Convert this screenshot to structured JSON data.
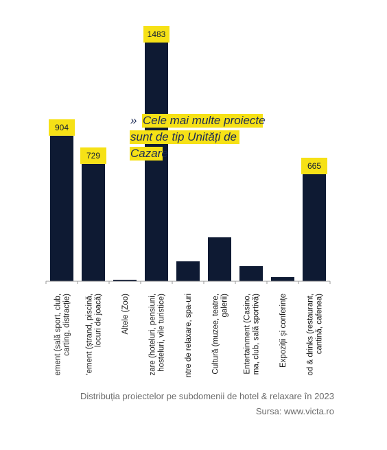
{
  "chart_data": {
    "type": "bar",
    "categories": [
      [
        "ement (sală sport, club,",
        "carting, distracție)"
      ],
      [
        "'ement (ștrand, piscină,",
        "locuri de joacă)"
      ],
      [
        "Altele (Zoo)"
      ],
      [
        "zare (hoteluri, pensiuni,",
        "hosteluri, vile turistice)"
      ],
      [
        "ntre de relaxare, spa-uri"
      ],
      [
        "Cultură (muzee, teatre,",
        "galerii)"
      ],
      [
        "Entertainment (Casino,",
        "ma, club, sală sportivă)"
      ],
      [
        "Expoziții și conferințe"
      ],
      [
        "od & drinks (restaurant,",
        "cantină, cafenea)"
      ]
    ],
    "values": [
      904,
      729,
      9,
      1483,
      124,
      273,
      94,
      26,
      665
    ],
    "value_labels": [
      "904",
      "729",
      null,
      "1483",
      null,
      null,
      null,
      null,
      "665"
    ],
    "color": "#0e1a33",
    "label_color": "#f6e116",
    "ylim": [
      0,
      1500
    ],
    "annotation": {
      "marker": "»",
      "lines": [
        "Cele mai multe proiecte",
        "sunt de tip Unități de",
        "Cazare"
      ]
    },
    "caption": "Distribuția proiectelor pe subdomenii de hotel & relaxare în 2023",
    "source": "Sursa: www.victa.ro"
  }
}
